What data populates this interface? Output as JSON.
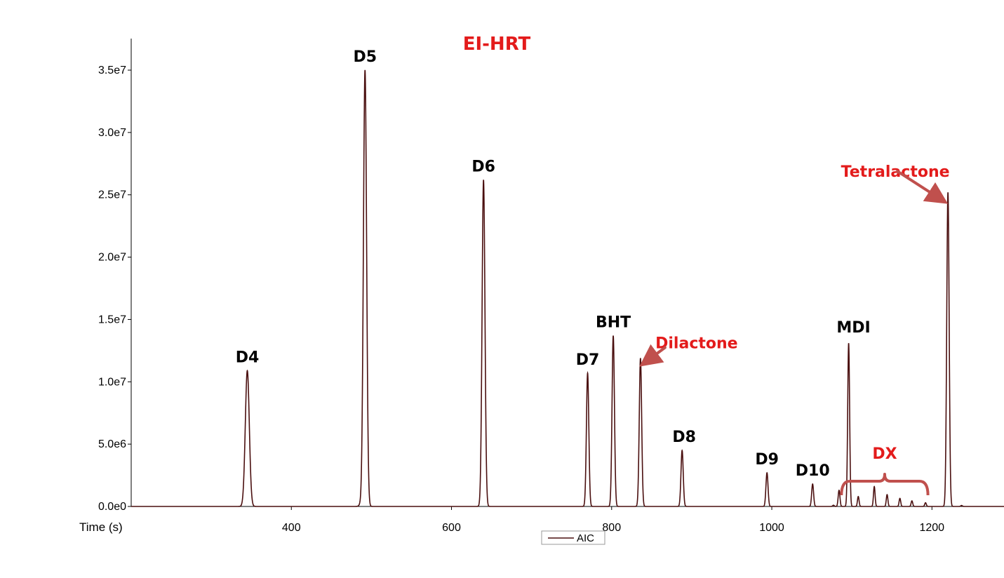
{
  "chart_data": {
    "type": "line",
    "title": "EI-HRT",
    "xlabel": "Time (s)",
    "ylabel": "",
    "xlim": [
      200,
      1290
    ],
    "ylim": [
      0,
      35000000
    ],
    "x_ticks": [
      400,
      600,
      800,
      1000,
      1200
    ],
    "x_tick_labels": [
      "400",
      "600",
      "800",
      "1000",
      "1200"
    ],
    "y_ticks": [
      0,
      5000000,
      10000000,
      15000000,
      20000000,
      25000000,
      30000000,
      35000000
    ],
    "y_tick_labels": [
      "0.0e0",
      "5.0e6",
      "1.0e7",
      "1.5e7",
      "2.0e7",
      "2.5e7",
      "3.0e7",
      "3.5e7"
    ],
    "grid": false,
    "legend": {
      "position": "bottom-center",
      "entries": [
        "AIC"
      ]
    },
    "series": [
      {
        "name": "AIC",
        "color": "#4a0f0f",
        "peaks": [
          {
            "label": "D4",
            "x": 345,
            "y": 10900000,
            "width": 2.5,
            "label_color": "black"
          },
          {
            "label": "",
            "x": 487,
            "y": 200000,
            "width": 2.0
          },
          {
            "label": "D5",
            "x": 492,
            "y": 35000000,
            "width": 2.0,
            "label_color": "black"
          },
          {
            "label": "D6",
            "x": 640,
            "y": 26200000,
            "width": 1.8,
            "label_color": "black"
          },
          {
            "label": "D7",
            "x": 770,
            "y": 10700000,
            "width": 1.5,
            "label_color": "black"
          },
          {
            "label": "BHT",
            "x": 802,
            "y": 13700000,
            "width": 1.5,
            "label_color": "black"
          },
          {
            "label": "Dilactone",
            "x": 836,
            "y": 11900000,
            "width": 1.5,
            "label_color": "red"
          },
          {
            "label": "D8",
            "x": 888,
            "y": 4500000,
            "width": 1.4,
            "label_color": "black"
          },
          {
            "label": "D9",
            "x": 994,
            "y": 2700000,
            "width": 1.3,
            "label_color": "black"
          },
          {
            "label": "D10",
            "x": 1051,
            "y": 1800000,
            "width": 1.2,
            "label_color": "black"
          },
          {
            "label": "",
            "x": 1077,
            "y": 100000,
            "width": 1.0
          },
          {
            "label": "",
            "x": 1084,
            "y": 1300000,
            "width": 1.1
          },
          {
            "label": "MDI",
            "x": 1096,
            "y": 13100000,
            "width": 1.2,
            "label_color": "black"
          },
          {
            "label": "",
            "x": 1108,
            "y": 800000,
            "width": 1.0
          },
          {
            "label": "",
            "x": 1128,
            "y": 1600000,
            "width": 1.0
          },
          {
            "label": "",
            "x": 1144,
            "y": 950000,
            "width": 1.0
          },
          {
            "label": "",
            "x": 1160,
            "y": 650000,
            "width": 1.0
          },
          {
            "label": "",
            "x": 1175,
            "y": 450000,
            "width": 1.0
          },
          {
            "label": "",
            "x": 1192,
            "y": 300000,
            "width": 1.0
          },
          {
            "label": "Tetralactone",
            "x": 1220,
            "y": 25200000,
            "width": 1.5,
            "label_color": "red"
          },
          {
            "label": "",
            "x": 1237,
            "y": 80000,
            "width": 1.0
          }
        ]
      }
    ],
    "annotations": [
      {
        "text": "DX",
        "color": "red",
        "type": "bracket",
        "x_from": 1087,
        "x_to": 1195
      },
      {
        "text": "",
        "type": "arrow",
        "points_to": "Dilactone",
        "color": "#c0504d"
      },
      {
        "text": "",
        "type": "arrow",
        "points_to": "Tetralactone",
        "color": "#c0504d"
      }
    ]
  }
}
